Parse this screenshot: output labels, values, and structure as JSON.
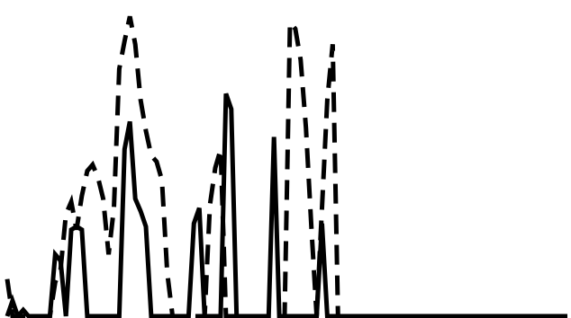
{
  "chart_data": {
    "type": "line",
    "grid": false,
    "legend": "none",
    "axes_visible": false,
    "x": [
      0,
      1,
      2,
      3,
      4,
      5,
      6,
      7,
      8,
      9,
      10,
      11,
      12,
      13,
      14,
      15,
      16,
      17,
      18,
      19,
      20,
      21,
      22,
      23,
      24,
      25,
      26,
      27,
      28,
      29,
      30,
      31,
      32,
      33,
      34,
      35,
      36,
      37,
      38,
      39,
      40,
      41,
      42,
      43,
      44,
      45,
      46,
      47,
      48,
      49,
      50,
      51,
      52,
      53,
      54,
      55,
      56,
      57,
      58,
      59,
      60,
      61,
      62,
      63,
      64,
      65,
      66,
      67,
      68,
      69,
      70,
      71,
      72,
      73,
      74,
      75,
      76,
      77,
      78,
      79,
      80,
      81,
      82,
      83,
      84,
      85,
      86,
      87,
      88,
      89,
      90,
      91,
      92,
      93,
      94,
      95,
      96,
      97,
      98,
      99,
      100,
      101,
      102,
      103,
      104,
      105
    ],
    "xlim": [
      0,
      105
    ],
    "ylim": [
      0,
      100
    ],
    "series": [
      {
        "style": "dashed",
        "color": "#000000",
        "values": [
          12,
          0,
          0,
          0,
          0,
          0,
          0,
          0,
          0,
          11,
          15,
          33,
          37,
          28,
          39,
          47,
          49,
          45,
          38,
          20,
          35,
          80,
          89,
          97,
          88,
          70,
          60,
          52,
          50,
          44,
          14,
          0,
          0,
          0,
          0,
          0,
          0,
          0,
          36,
          48,
          54,
          0,
          0,
          0,
          0,
          0,
          0,
          0,
          0,
          0,
          0,
          0,
          0,
          95,
          93,
          83,
          61,
          29,
          0,
          35,
          70,
          88,
          0,
          0,
          0,
          0,
          0,
          0,
          0,
          0,
          0,
          0,
          0,
          0,
          0,
          0,
          0,
          0,
          0,
          0,
          0,
          0,
          0,
          0,
          0,
          0,
          0,
          0,
          0,
          0,
          0,
          0,
          0,
          0,
          0,
          0,
          0,
          0,
          0,
          0,
          0,
          0,
          0,
          0,
          0,
          0
        ]
      },
      {
        "style": "solid",
        "color": "#000000",
        "values": [
          0,
          5,
          0,
          2,
          0,
          0,
          0,
          0,
          0,
          20,
          18,
          0,
          28,
          29,
          28,
          0,
          0,
          0,
          0,
          0,
          0,
          0,
          54,
          63,
          38,
          34,
          29,
          0,
          0,
          0,
          0,
          0,
          0,
          0,
          0,
          30,
          35,
          0,
          0,
          0,
          0,
          72,
          67,
          0,
          0,
          0,
          0,
          0,
          0,
          0,
          58,
          0,
          0,
          0,
          0,
          0,
          0,
          0,
          0,
          30,
          0,
          0,
          0,
          0,
          0,
          0,
          0,
          0,
          0,
          0,
          0,
          0,
          0,
          0,
          0,
          0,
          0,
          0,
          0,
          0,
          0,
          0,
          0,
          0,
          0,
          0,
          0,
          0,
          0,
          0,
          0,
          0,
          0,
          0,
          0,
          0,
          0,
          0,
          0,
          0,
          0,
          0,
          0,
          0,
          0,
          0
        ]
      }
    ]
  }
}
